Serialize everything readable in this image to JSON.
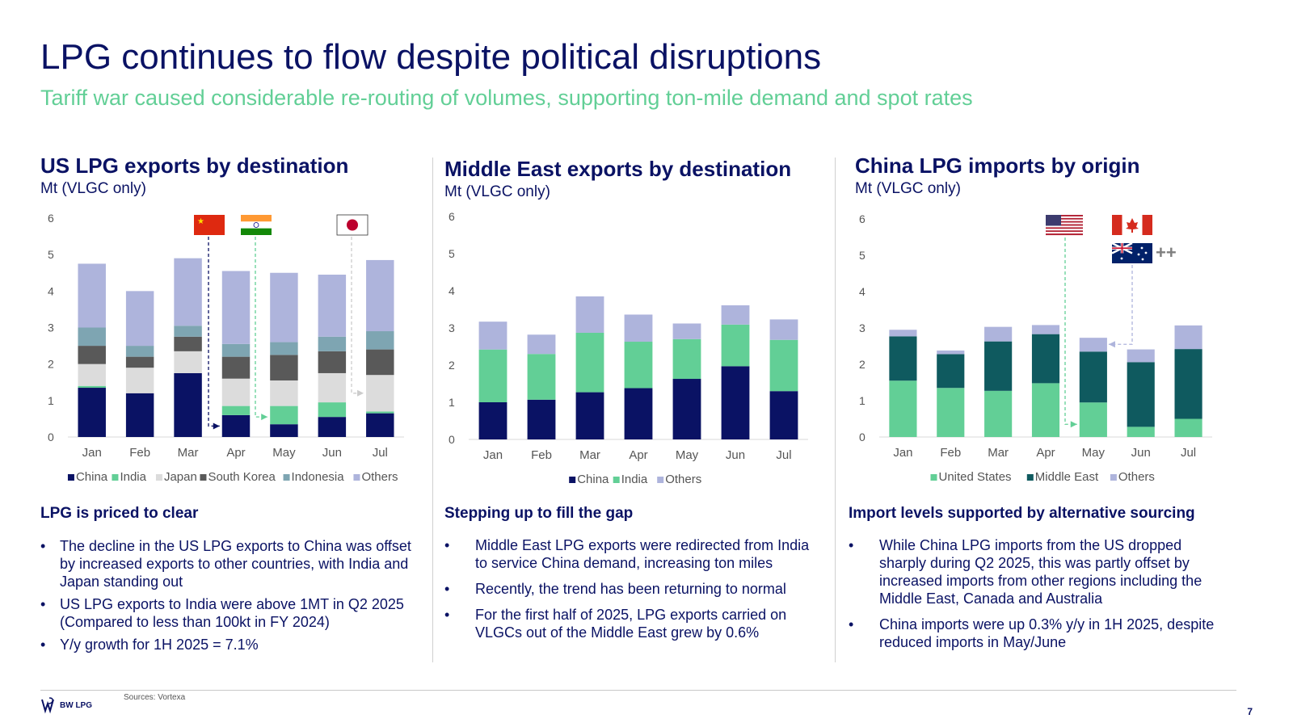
{
  "title": "LPG continues to flow despite political disruptions",
  "subtitle": "Tariff war caused considerable re-routing of volumes, supporting ton-mile demand and spot rates",
  "colors": {
    "navy": "#0a1264",
    "green": "#62cf96",
    "light_grey": "#dcdcdc",
    "dark_grey": "#595959",
    "teal_grey": "#7ea5b2",
    "lavender": "#aeb4dc",
    "dark_teal": "#0f5a5f"
  },
  "chart_data": [
    {
      "id": "us",
      "type": "bar",
      "stacked": true,
      "title": "US LPG exports by destination",
      "ylabel": "Mt (VLGC only)",
      "ylim": [
        0,
        6
      ],
      "yticks": [
        "0",
        "1",
        "2",
        "3",
        "4",
        "5",
        "6"
      ],
      "categories": [
        "Jan",
        "Feb",
        "Mar",
        "Apr",
        "May",
        "Jun",
        "Jul"
      ],
      "series": [
        {
          "name": "China",
          "color": "#0a1264",
          "values": [
            1.35,
            1.2,
            1.75,
            0.6,
            0.35,
            0.55,
            0.65
          ]
        },
        {
          "name": "India",
          "color": "#62cf96",
          "values": [
            0.05,
            0.0,
            0.0,
            0.25,
            0.5,
            0.4,
            0.05
          ]
        },
        {
          "name": "Japan",
          "color": "#dcdcdc",
          "values": [
            0.6,
            0.7,
            0.6,
            0.75,
            0.7,
            0.8,
            1.0
          ]
        },
        {
          "name": "South Korea",
          "color": "#595959",
          "values": [
            0.5,
            0.3,
            0.4,
            0.6,
            0.7,
            0.6,
            0.7
          ]
        },
        {
          "name": "Indonesia",
          "color": "#7ea5b2",
          "values": [
            0.5,
            0.3,
            0.3,
            0.35,
            0.35,
            0.4,
            0.5
          ]
        },
        {
          "name": "Others",
          "color": "#aeb4dc",
          "values": [
            1.75,
            1.5,
            1.85,
            2.0,
            1.9,
            1.7,
            1.95
          ]
        }
      ]
    },
    {
      "id": "me",
      "type": "bar",
      "stacked": true,
      "title": "Middle East exports by destination",
      "ylabel": "Mt (VLGC only)",
      "ylim": [
        0,
        6
      ],
      "yticks": [
        "0",
        "1",
        "2",
        "3",
        "4",
        "5",
        "6"
      ],
      "categories": [
        "Jan",
        "Feb",
        "Mar",
        "Apr",
        "May",
        "Jun",
        "Jul"
      ],
      "series": [
        {
          "name": "China",
          "color": "#0a1264",
          "values": [
            1.0,
            1.07,
            1.27,
            1.38,
            1.63,
            1.97,
            1.3
          ]
        },
        {
          "name": "India",
          "color": "#62cf96",
          "values": [
            1.42,
            1.23,
            1.6,
            1.25,
            1.07,
            1.12,
            1.38
          ]
        },
        {
          "name": "Others",
          "color": "#aeb4dc",
          "values": [
            0.75,
            0.52,
            0.98,
            0.73,
            0.42,
            0.52,
            0.55
          ]
        }
      ]
    },
    {
      "id": "cn",
      "type": "bar",
      "stacked": true,
      "title": "China LPG imports by origin",
      "ylabel": "Mt (VLGC only)",
      "ylim": [
        0,
        6
      ],
      "yticks": [
        "0",
        "1",
        "2",
        "3",
        "4",
        "5",
        "6"
      ],
      "categories": [
        "Jan",
        "Feb",
        "Mar",
        "Apr",
        "May",
        "Jun",
        "Jul"
      ],
      "series": [
        {
          "name": "United States",
          "color": "#62cf96",
          "values": [
            1.55,
            1.35,
            1.27,
            1.48,
            0.95,
            0.28,
            0.5
          ]
        },
        {
          "name": "Middle East",
          "color": "#0f5a5f",
          "values": [
            1.22,
            0.93,
            1.36,
            1.35,
            1.4,
            1.78,
            1.92
          ]
        },
        {
          "name": "Others",
          "color": "#aeb4dc",
          "values": [
            0.18,
            0.1,
            0.4,
            0.25,
            0.38,
            0.35,
            0.65
          ]
        }
      ]
    }
  ],
  "flag_annotations": {
    "cn_label": "++"
  },
  "left_text": {
    "heading": "LPG is priced to clear",
    "bullets": [
      "The decline in the US LPG exports to China was offset by increased exports to other countries, with India and Japan standing out",
      "US LPG exports to India were above 1MT in Q2 2025 (Compared to less than 100kt in FY 2024)",
      "Y/y growth for 1H 2025 = 7.1%"
    ]
  },
  "mid_text": {
    "heading": "Stepping up to fill the gap",
    "bullets": [
      "Middle East LPG exports were redirected from India to service China demand, increasing ton miles",
      "Recently, the trend has been returning to normal",
      "For the first half of 2025, LPG exports carried on VLGCs out of the Middle East grew by 0.6%"
    ]
  },
  "right_text": {
    "heading": "Import levels supported by alternative sourcing",
    "bullets": [
      "While China LPG imports from the US dropped sharply during Q2 2025, this was partly offset by increased imports from other regions including the Middle East, Canada and Australia",
      "China imports were up 0.3% y/y in 1H 2025, despite reduced imports in May/June"
    ]
  },
  "footer": {
    "sources": "Sources: Vortexa",
    "logo_text": "BW LPG",
    "page_number": "7"
  }
}
